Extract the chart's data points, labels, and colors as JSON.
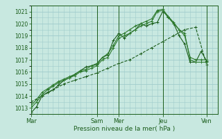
{
  "background_color": "#c8e8e0",
  "grid_color": "#a0cccc",
  "line_color_dark": "#1a5c1a",
  "line_color_mid": "#2d7a2d",
  "xlabel": "Pression niveau de la mer( hPa )",
  "ylim": [
    1012.5,
    1021.5
  ],
  "yticks": [
    1013,
    1014,
    1015,
    1016,
    1017,
    1018,
    1019,
    1020,
    1021
  ],
  "day_labels": [
    "Mar",
    "Sam",
    "Mer",
    "Jeu",
    "Ven"
  ],
  "day_positions": [
    0,
    12,
    16,
    24,
    32
  ],
  "xlim": [
    0,
    34
  ],
  "series1_x": [
    0,
    1,
    2,
    3,
    4,
    5,
    6,
    7,
    8,
    9,
    10,
    11,
    12,
    13,
    14,
    15,
    16,
    17,
    18,
    19,
    20,
    21,
    22,
    23,
    24,
    25,
    26,
    27,
    28,
    29,
    30,
    31,
    32
  ],
  "series1_y": [
    1012.6,
    1013.1,
    1014.0,
    1014.3,
    1014.5,
    1014.9,
    1015.3,
    1015.5,
    1015.8,
    1016.1,
    1016.4,
    1016.5,
    1016.6,
    1017.2,
    1017.4,
    1018.6,
    1019.2,
    1018.8,
    1019.2,
    1019.5,
    1020.0,
    1019.8,
    1020.0,
    1020.1,
    1021.0,
    1020.6,
    1020.0,
    1019.0,
    1018.3,
    1016.8,
    1016.8,
    1017.7,
    1016.9
  ],
  "series2_x": [
    0,
    1,
    2,
    3,
    4,
    5,
    6,
    7,
    8,
    9,
    10,
    11,
    12,
    13,
    14,
    15,
    16,
    17,
    18,
    19,
    20,
    21,
    22,
    23,
    24,
    25,
    26,
    27,
    28,
    29,
    30,
    31,
    32
  ],
  "series2_y": [
    1013.0,
    1013.5,
    1014.1,
    1014.5,
    1014.8,
    1015.1,
    1015.3,
    1015.5,
    1015.7,
    1016.0,
    1016.1,
    1016.3,
    1016.5,
    1017.0,
    1017.2,
    1018.0,
    1018.8,
    1019.0,
    1019.2,
    1019.5,
    1019.8,
    1020.0,
    1020.2,
    1021.0,
    1021.1,
    1020.5,
    1020.0,
    1019.5,
    1019.2,
    1017.0,
    1016.8,
    1016.8,
    1016.8
  ],
  "series3_x": [
    0,
    1,
    2,
    3,
    4,
    5,
    6,
    7,
    8,
    9,
    10,
    11,
    12,
    13,
    14,
    15,
    16,
    17,
    18,
    19,
    20,
    21,
    22,
    23,
    24,
    25,
    26,
    27,
    28,
    29,
    30,
    31,
    32
  ],
  "series3_y": [
    1013.2,
    1013.7,
    1014.3,
    1014.6,
    1014.9,
    1015.2,
    1015.4,
    1015.6,
    1015.8,
    1016.1,
    1016.2,
    1016.5,
    1016.7,
    1017.2,
    1017.5,
    1018.2,
    1019.0,
    1019.2,
    1019.5,
    1019.8,
    1020.0,
    1020.2,
    1020.4,
    1021.1,
    1021.2,
    1020.6,
    1020.1,
    1019.5,
    1019.0,
    1017.2,
    1017.0,
    1017.0,
    1017.0
  ],
  "series4_x": [
    0,
    2,
    4,
    6,
    8,
    10,
    12,
    14,
    16,
    18,
    20,
    22,
    24,
    26,
    28,
    30,
    32
  ],
  "series4_y": [
    1013.5,
    1014.0,
    1014.5,
    1015.0,
    1015.3,
    1015.6,
    1015.9,
    1016.3,
    1016.7,
    1017.0,
    1017.5,
    1018.0,
    1018.5,
    1019.0,
    1019.5,
    1019.7,
    1016.6
  ]
}
